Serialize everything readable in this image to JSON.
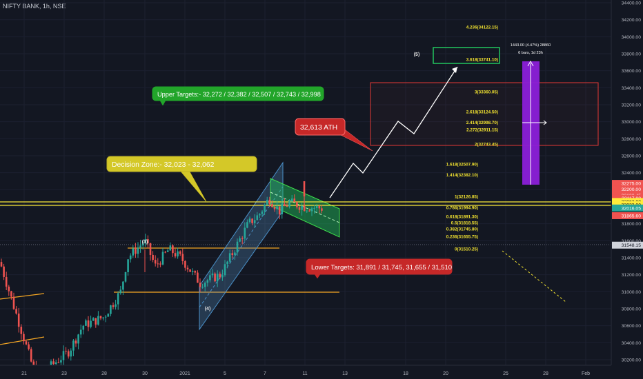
{
  "symbol_title": "NIFTY BANK, 1h, NSE",
  "colors": {
    "bg": "#131722",
    "up": "#26a69a",
    "down": "#ef5350",
    "yellow": "#ffeb3b",
    "orange": "#f5a623",
    "green": "#22c55e",
    "purple": "#8b1fd9",
    "fib": "#f0e130",
    "text": "#b2b5be"
  },
  "price_axis": {
    "ticks": [
      "34400.00",
      "34200.00",
      "34000.00",
      "33800.00",
      "33600.00",
      "33400.00",
      "33200.00",
      "33000.00",
      "32800.00",
      "32600.00",
      "32400.00",
      "32200.00",
      "32000.00",
      "31800.00",
      "31600.00",
      "31400.00",
      "31200.00",
      "31000.00",
      "30800.00",
      "30600.00",
      "30400.00",
      "30200.00"
    ],
    "labels": [
      {
        "text": "32275.00",
        "color": "#ef5350",
        "value": 32275
      },
      {
        "text": "32200.00",
        "color": "#ef5350",
        "value": 32205
      },
      {
        "text": "32133.45",
        "color": "#ef5350",
        "value": 32133
      },
      {
        "text": "32117.80",
        "color": "#ef5350",
        "value": 32100
      },
      {
        "text": "32062.00",
        "color": "#ffeb3b",
        "value": 32062
      },
      {
        "text": "32023.00",
        "color": "#ffeb3b",
        "value": 32023
      },
      {
        "text": "32016.05",
        "color": "#26a69a",
        "value": 31985
      },
      {
        "text": "31865.60",
        "color": "#ef5350",
        "value": 31895
      },
      {
        "text": "31548.15",
        "color": "#d1d4dc",
        "value": 31548
      }
    ]
  },
  "time_axis": [
    "21",
    "23",
    "28",
    "30",
    "2021",
    "5",
    "7",
    "11",
    "13",
    "18",
    "20",
    "25",
    "28",
    "Feb"
  ],
  "fib_levels": [
    {
      "label": "4.236(34122.15)",
      "value": 34122
    },
    {
      "label": "3.618(33741.10)",
      "value": 33741
    },
    {
      "label": "3(33360.05)",
      "value": 33360
    },
    {
      "label": "2.618(33124.50)",
      "value": 33124
    },
    {
      "label": "2.414(32998.70)",
      "value": 32998
    },
    {
      "label": "2.272(32911.15)",
      "value": 32911
    },
    {
      "label": "2(32743.45)",
      "value": 32743
    },
    {
      "label": "1.618(32507.90)",
      "value": 32507
    },
    {
      "label": "1.414(32382.10)",
      "value": 32382
    },
    {
      "label": "1(32126.85)",
      "value": 32126
    },
    {
      "label": "0.786(31994.90)",
      "value": 31994
    },
    {
      "label": "0.618(31891.30)",
      "value": 31891
    },
    {
      "label": "0.5(31818.55)",
      "value": 31818
    },
    {
      "label": "0.382(31745.80)",
      "value": 31745
    },
    {
      "label": "0.236(31655.75)",
      "value": 31655
    },
    {
      "label": "0(31510.25)",
      "value": 31510
    }
  ],
  "annotations": {
    "upper_targets": "Upper Targets:- 32,272 / 32,382 / 32,507 / 32,743 / 32,998",
    "decision_zone": "Decision Zone:-  32,023  -  32,062",
    "ath": "32,613 ATH",
    "lower_targets": "Lower Targets: 31,891 / 31,745, 31,655 / 31,510",
    "wave_3": "(3)",
    "wave_4": "(4)",
    "wave_5": "(5)",
    "measure_line1": "1443.00 (4.47%) 28860",
    "measure_line2": "6 bars, 1d 23h"
  }
}
